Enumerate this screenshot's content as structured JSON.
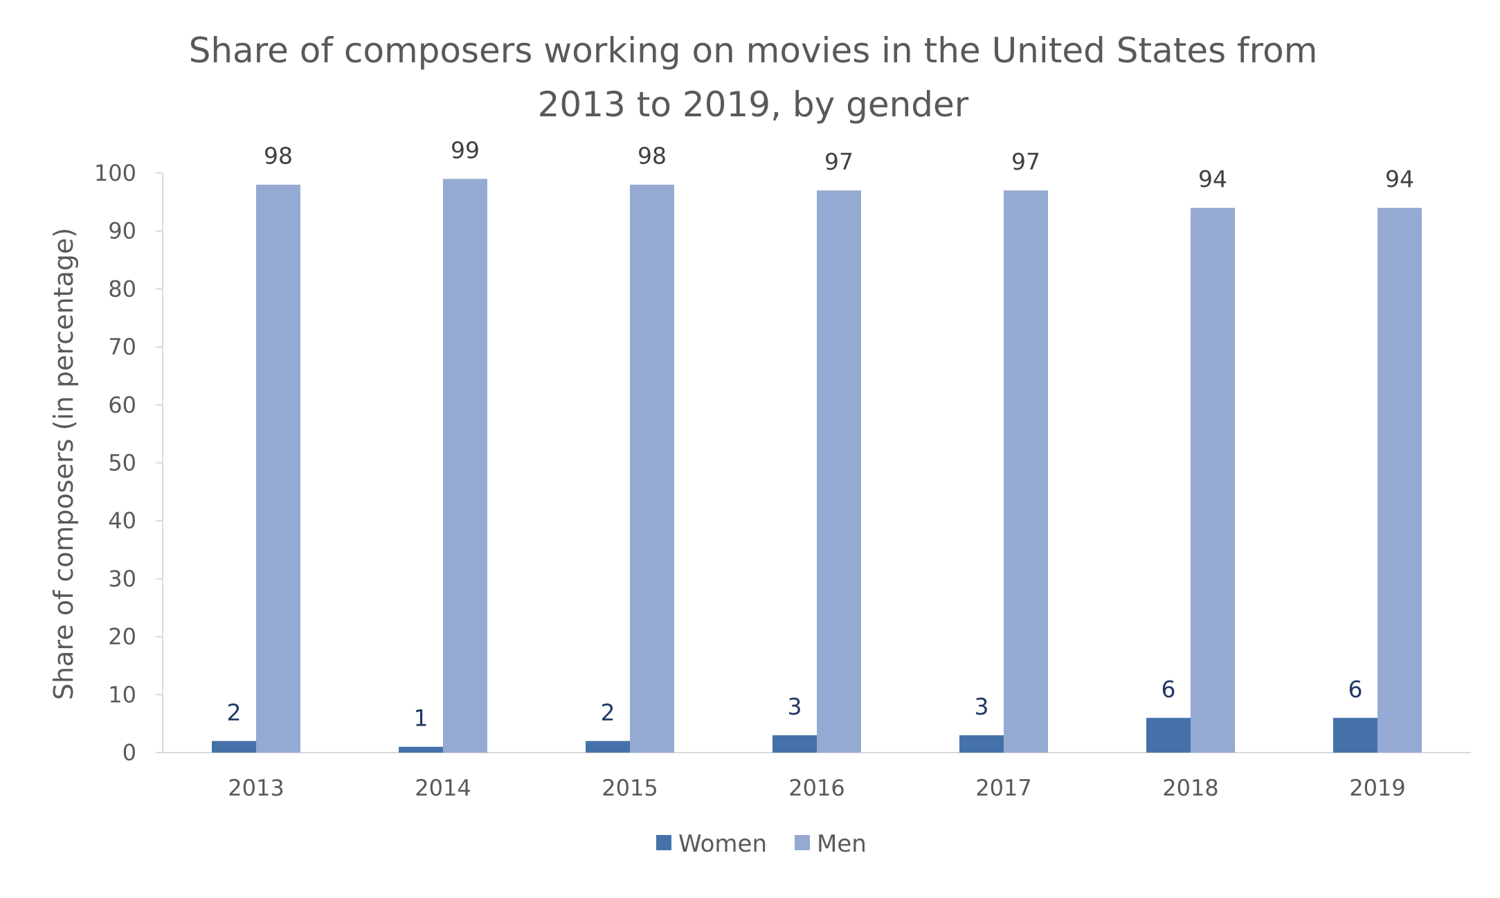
{
  "chart_data": {
    "type": "bar",
    "title": "Share of composers working on movies in the United States from 2013 to 2019, by gender",
    "title_lines": [
      "Share of composers working on movies in the United States from",
      "2013 to 2019, by gender"
    ],
    "ylabel": "Share  of composers (in percentage)",
    "xlabel": "",
    "ylim": [
      0,
      100
    ],
    "yticks": [
      0,
      10,
      20,
      30,
      40,
      50,
      60,
      70,
      80,
      90,
      100
    ],
    "categories": [
      "2013",
      "2014",
      "2015",
      "2016",
      "2017",
      "2018",
      "2019"
    ],
    "series": [
      {
        "name": "Women",
        "color": "#4472a8",
        "values": [
          2,
          1,
          2,
          3,
          3,
          6,
          6
        ]
      },
      {
        "name": "Men",
        "color": "#95aad2",
        "values": [
          98,
          99,
          98,
          97,
          97,
          94,
          94
        ]
      }
    ],
    "grid": false,
    "legend_position": "bottom"
  }
}
